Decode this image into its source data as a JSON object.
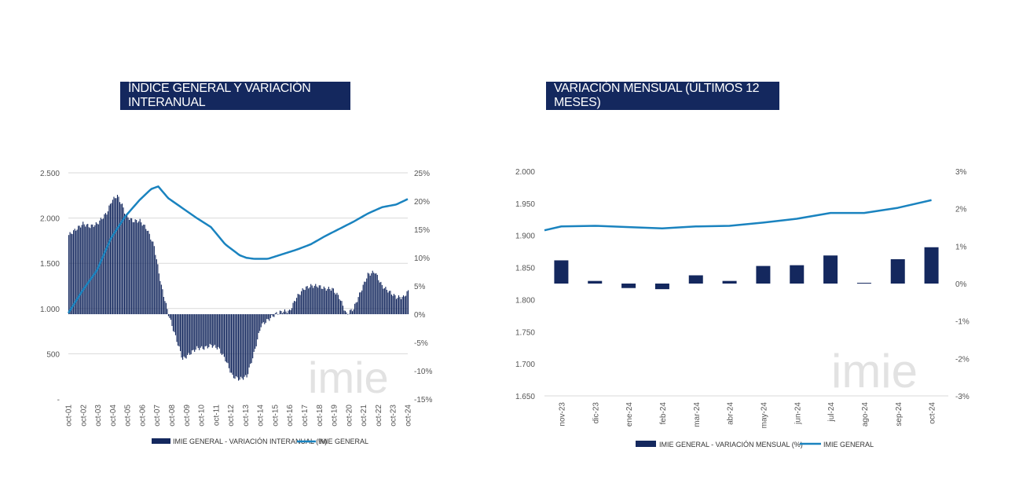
{
  "colors": {
    "navy": "#14285e",
    "line": "#1a83bf",
    "grid": "#d9d9d9",
    "watermark": "#e2e2e2"
  },
  "watermark": "imie",
  "chart_data": [
    {
      "type": "bar+line",
      "title": "ÍNDICE GENERAL Y VARIACIÓN INTERANUAL",
      "y_left": {
        "ticks": [
          "2.500",
          "2.000",
          "1.500",
          "1.000",
          "500",
          "-"
        ],
        "range": [
          0,
          2500
        ]
      },
      "y_right": {
        "ticks": [
          "25%",
          "20%",
          "15%",
          "10%",
          "5%",
          "0%",
          "-5%",
          "-10%",
          "-15%"
        ],
        "range": [
          -15,
          25
        ]
      },
      "x_ticks": [
        "oct-01",
        "oct-02",
        "oct-03",
        "oct-04",
        "oct-05",
        "oct-06",
        "oct-07",
        "oct-08",
        "oct-09",
        "oct-10",
        "oct-11",
        "oct-12",
        "oct-13",
        "oct-14",
        "oct-15",
        "oct-16",
        "oct-17",
        "oct-18",
        "oct-19",
        "oct-20",
        "oct-21",
        "oct-22",
        "oct-23",
        "oct-24"
      ],
      "series": [
        {
          "name": "IMIE GENERAL - VARIACIÓN INTERANUAL (%)",
          "kind": "bar",
          "axis": "right",
          "knots": [
            [
              0,
              14
            ],
            [
              0.5,
              15
            ],
            [
              1,
              16
            ],
            [
              1.5,
              15.5
            ],
            [
              2,
              16
            ],
            [
              2.7,
              18
            ],
            [
              3,
              20
            ],
            [
              3.4,
              21
            ],
            [
              3.8,
              19
            ],
            [
              4,
              17.5
            ],
            [
              4.5,
              16.5
            ],
            [
              5,
              16.5
            ],
            [
              5.5,
              15
            ],
            [
              6,
              12
            ],
            [
              6.5,
              5
            ],
            [
              7,
              0
            ],
            [
              7.5,
              -4
            ],
            [
              8,
              -8
            ],
            [
              8.5,
              -7
            ],
            [
              9,
              -6
            ],
            [
              9.5,
              -6
            ],
            [
              10,
              -5.5
            ],
            [
              10.5,
              -6
            ],
            [
              11,
              -8
            ],
            [
              11.5,
              -11
            ],
            [
              12,
              -11.5
            ],
            [
              12.5,
              -11
            ],
            [
              13,
              -7
            ],
            [
              13.5,
              -2
            ],
            [
              14,
              -1
            ],
            [
              14.5,
              0
            ],
            [
              15,
              0.5
            ],
            [
              15.5,
              0.5
            ],
            [
              16,
              3
            ],
            [
              16.5,
              4.5
            ],
            [
              17,
              5
            ],
            [
              17.5,
              5
            ],
            [
              18,
              4.5
            ],
            [
              18.5,
              4.5
            ],
            [
              19,
              3
            ],
            [
              19.5,
              0
            ],
            [
              20,
              1
            ],
            [
              20.5,
              4
            ],
            [
              21,
              7
            ],
            [
              21.5,
              7.5
            ],
            [
              22,
              5
            ],
            [
              22.5,
              4
            ],
            [
              23,
              3
            ],
            [
              23.5,
              3
            ],
            [
              23.8,
              4
            ]
          ]
        },
        {
          "name": "IMIE GENERAL",
          "kind": "line",
          "axis": "left",
          "knots": [
            [
              0,
              950
            ],
            [
              1,
              1200
            ],
            [
              2,
              1420
            ],
            [
              3,
              1780
            ],
            [
              4,
              2020
            ],
            [
              5,
              2200
            ],
            [
              5.8,
              2320
            ],
            [
              6.3,
              2350
            ],
            [
              7,
              2220
            ],
            [
              8,
              2110
            ],
            [
              9,
              2000
            ],
            [
              10,
              1900
            ],
            [
              11,
              1710
            ],
            [
              12,
              1590
            ],
            [
              12.5,
              1560
            ],
            [
              13,
              1550
            ],
            [
              14,
              1550
            ],
            [
              15,
              1600
            ],
            [
              16,
              1650
            ],
            [
              17,
              1710
            ],
            [
              18,
              1800
            ],
            [
              19,
              1880
            ],
            [
              20,
              1960
            ],
            [
              21,
              2050
            ],
            [
              22,
              2120
            ],
            [
              23,
              2150
            ],
            [
              23.8,
              2210
            ]
          ]
        }
      ],
      "legend": [
        "IMIE GENERAL - VARIACIÓN INTERANUAL (%)",
        "IMIE GENERAL"
      ]
    },
    {
      "type": "bar+line",
      "title": "VARIACIÓN MENSUAL (ÚLTIMOS 12 MESES)",
      "y_left": {
        "ticks": [
          "2.000",
          "1.950",
          "1.900",
          "1.850",
          "1.800",
          "1.750",
          "1.700",
          "1.650"
        ],
        "range": [
          1650,
          2000
        ]
      },
      "y_right": {
        "ticks": [
          "3%",
          "2%",
          "1%",
          "0%",
          "-1%",
          "-2%",
          "-3%"
        ],
        "range": [
          -3,
          3
        ]
      },
      "categories": [
        "nov-23",
        "dic-23",
        "ene-24",
        "feb-24",
        "mar-24",
        "abr-24",
        "may-24",
        "jun-24",
        "jul-24",
        "ago-24",
        "sep-24",
        "oct-24"
      ],
      "series": [
        {
          "name": "IMIE GENERAL - VARIACIÓN MENSUAL (%)",
          "kind": "bar",
          "axis": "right",
          "values": [
            0.62,
            0.07,
            -0.12,
            -0.15,
            0.22,
            0.07,
            0.47,
            0.49,
            0.75,
            0.02,
            0.65,
            0.97
          ]
        },
        {
          "name": "IMIE GENERAL",
          "kind": "line",
          "axis": "left",
          "values": [
            1914,
            1915,
            1913,
            1911,
            1914,
            1915,
            1920,
            1926,
            1935,
            1935,
            1943,
            1955
          ]
        }
      ],
      "line_start": 1908,
      "legend": [
        "IMIE GENERAL - VARIACIÓN MENSUAL (%)",
        "IMIE GENERAL"
      ]
    }
  ]
}
